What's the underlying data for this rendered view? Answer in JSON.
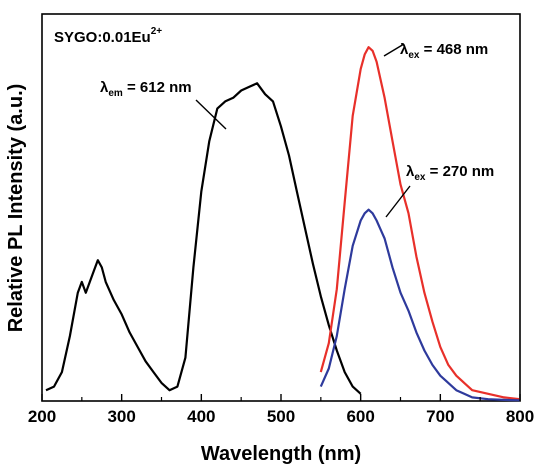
{
  "chart_data": {
    "type": "line",
    "xlabel": "Wavelength (nm)",
    "ylabel": "Relative PL Intensity (a.u.)",
    "xlim": [
      200,
      800
    ],
    "ylim": [
      0,
      100
    ],
    "xticks": [
      "200",
      "300",
      "400",
      "500",
      "600",
      "700",
      "800"
    ],
    "yticks_shown": false,
    "grid": false,
    "sample_label": {
      "base": "SYGO:0.01Eu",
      "sup": "2+"
    },
    "annotations": [
      {
        "id": "em",
        "symbol": "λ",
        "sub": "em",
        "text": " = 612 nm"
      },
      {
        "id": "ex468",
        "symbol": "λ",
        "sub": "ex",
        "text": " = 468 nm"
      },
      {
        "id": "ex270",
        "symbol": "λ",
        "sub": "ex",
        "text": " = 270 nm"
      }
    ],
    "series": [
      {
        "id": "excitation",
        "color": "#000000",
        "x": [
          205,
          215,
          225,
          235,
          245,
          250,
          255,
          260,
          265,
          270,
          275,
          280,
          290,
          300,
          310,
          320,
          330,
          340,
          350,
          360,
          370,
          380,
          390,
          400,
          410,
          420,
          430,
          440,
          450,
          460,
          470,
          480,
          490,
          500,
          510,
          520,
          530,
          540,
          550,
          560,
          570,
          580,
          590,
          600
        ],
        "y": [
          3,
          4,
          8,
          18,
          30,
          33,
          30,
          33,
          36,
          39,
          37,
          33,
          28,
          24,
          19,
          15,
          11,
          8,
          5,
          3,
          4,
          12,
          37,
          58,
          72,
          81,
          83,
          84,
          86,
          87,
          88,
          85,
          83,
          76,
          68,
          58,
          48,
          38,
          29,
          21,
          14,
          8,
          4,
          2
        ]
      },
      {
        "id": "emission-468",
        "color": "#e8302a",
        "x": [
          550,
          560,
          570,
          580,
          590,
          600,
          605,
          610,
          615,
          620,
          630,
          640,
          650,
          660,
          670,
          680,
          690,
          700,
          710,
          720,
          730,
          740,
          760,
          780,
          800
        ],
        "y": [
          8,
          16,
          31,
          55,
          79,
          92,
          96,
          98,
          97,
          94,
          84,
          72,
          60,
          52,
          40,
          30,
          22,
          15,
          10,
          7,
          5,
          3,
          2,
          1,
          0.5
        ]
      },
      {
        "id": "emission-270",
        "color": "#2e3a9c",
        "x": [
          550,
          560,
          570,
          580,
          590,
          600,
          605,
          610,
          615,
          620,
          630,
          640,
          650,
          660,
          670,
          680,
          690,
          700,
          710,
          720,
          730,
          740,
          760,
          780,
          800
        ],
        "y": [
          4,
          9,
          18,
          31,
          43,
          50,
          52,
          53,
          52,
          50,
          45,
          37,
          30,
          25,
          19,
          14,
          10,
          7,
          5,
          3,
          2,
          1,
          0.5,
          0.3,
          0.2
        ]
      }
    ]
  }
}
